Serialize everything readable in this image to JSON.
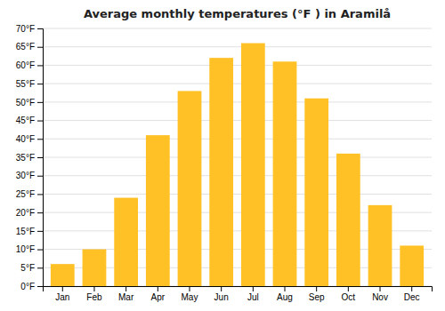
{
  "chart_data": {
    "type": "bar",
    "title": "Average monthly temperatures (°F ) in Aramilå",
    "categories": [
      "Jan",
      "Feb",
      "Mar",
      "Apr",
      "May",
      "Jun",
      "Jul",
      "Aug",
      "Sep",
      "Oct",
      "Nov",
      "Dec"
    ],
    "values": [
      6,
      10,
      24,
      41,
      53,
      62,
      66,
      61,
      51,
      36,
      22,
      11
    ],
    "color": "#FFC125",
    "ylim": [
      0,
      70
    ],
    "yticks": [
      {
        "value": 0,
        "label": "0°F"
      },
      {
        "value": 5,
        "label": "5°F"
      },
      {
        "value": 10,
        "label": "10°F"
      },
      {
        "value": 15,
        "label": "15°F"
      },
      {
        "value": 20,
        "label": "20°F"
      },
      {
        "value": 25,
        "label": "25°F"
      },
      {
        "value": 30,
        "label": "30°F"
      },
      {
        "value": 35,
        "label": "35°F"
      },
      {
        "value": 40,
        "label": "40°F"
      },
      {
        "value": 45,
        "label": "45°F"
      },
      {
        "value": 50,
        "label": "50°F"
      },
      {
        "value": 55,
        "label": "55°F"
      },
      {
        "value": 60,
        "label": "60°F"
      },
      {
        "value": 65,
        "label": "65°F"
      },
      {
        "value": 70,
        "label": "70°F"
      }
    ],
    "grid": true
  }
}
